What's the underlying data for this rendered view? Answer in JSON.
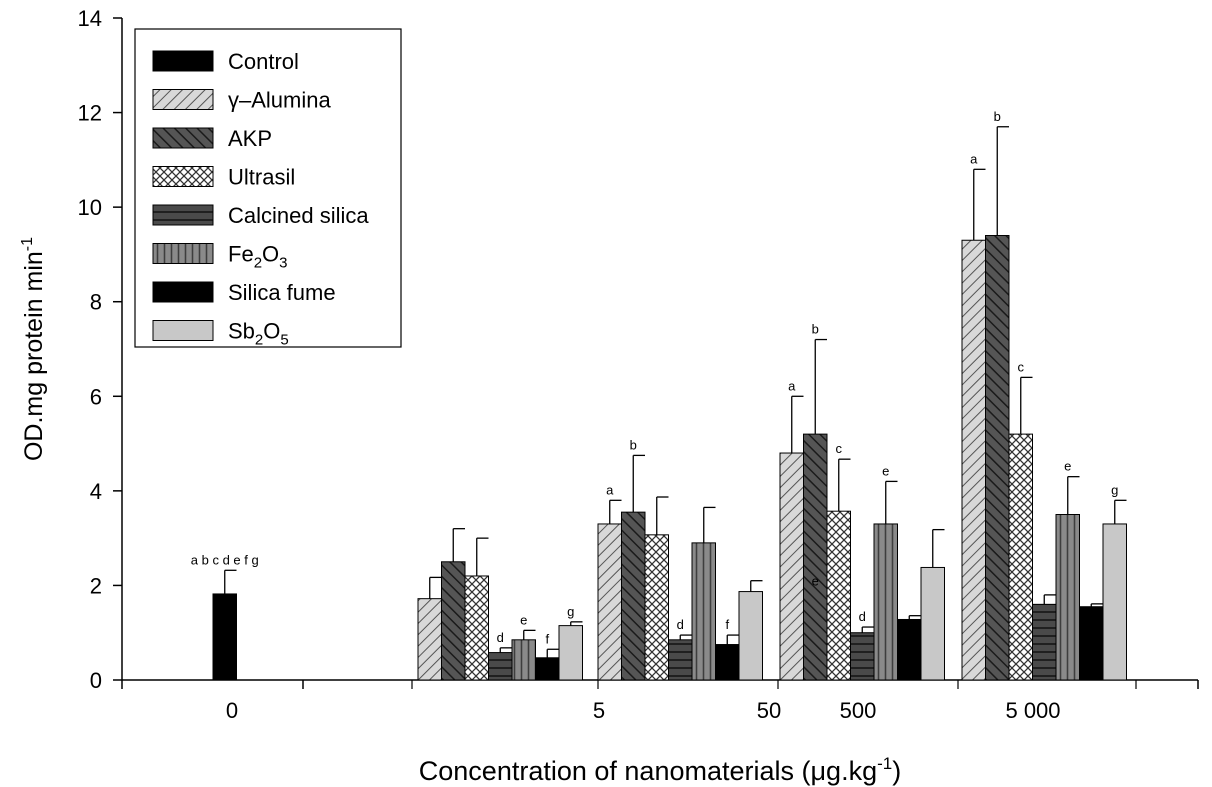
{
  "chart_data": {
    "type": "bar",
    "title": "",
    "xlabel": "Concentration of nanomaterials (μg.kg",
    "xlabel_sup": "-1",
    "xlabel_end": ")",
    "ylabel": "OD.mg protein min",
    "ylabel_sup": "-1",
    "ylim": [
      0,
      14
    ],
    "yticks": [
      "0",
      "2",
      "4",
      "6",
      "8",
      "10",
      "12",
      "14"
    ],
    "categories": [
      "0",
      "5",
      "50",
      "500",
      "5 000"
    ],
    "legend_position": "top-left",
    "series": [
      {
        "name": "Control",
        "pattern": "solid-black",
        "values": [
          1.82,
          null,
          null,
          null,
          null
        ],
        "errors": [
          0.5,
          null,
          null,
          null,
          null
        ],
        "letters": [
          "a b c d e f g",
          "",
          "",
          "",
          ""
        ]
      },
      {
        "name": "γ–Alumina",
        "pattern": "diag-light",
        "values": [
          null,
          1.72,
          3.3,
          4.8,
          9.3
        ],
        "errors": [
          null,
          0.45,
          0.5,
          1.2,
          1.5
        ],
        "letters": [
          "",
          "",
          "a",
          "a",
          "a"
        ]
      },
      {
        "name": "AKP",
        "pattern": "diag-dark",
        "values": [
          null,
          2.5,
          3.55,
          5.2,
          9.4
        ],
        "errors": [
          null,
          0.7,
          1.2,
          2.0,
          2.3
        ],
        "letters": [
          "",
          "",
          "b",
          "b",
          "b"
        ]
      },
      {
        "name": "Ultrasil",
        "pattern": "crosshatch",
        "values": [
          null,
          2.2,
          3.07,
          3.57,
          5.2
        ],
        "errors": [
          null,
          0.8,
          0.8,
          1.1,
          1.2
        ],
        "letters": [
          "",
          "",
          "",
          "c",
          "c"
        ]
      },
      {
        "name": "Calcined silica",
        "pattern": "horizontal-dark",
        "values": [
          null,
          0.58,
          0.85,
          1.0,
          1.6
        ],
        "errors": [
          null,
          0.1,
          0.1,
          0.12,
          0.2
        ],
        "letters": [
          "",
          "d",
          "d",
          "d",
          ""
        ]
      },
      {
        "name": "Fe",
        "name_sub1": "2",
        "name_mid": "O",
        "name_sub2": "3",
        "pattern": "vertical-grey",
        "values": [
          null,
          0.85,
          2.9,
          3.3,
          3.5
        ],
        "errors": [
          null,
          0.2,
          0.75,
          0.9,
          0.8
        ],
        "letters": [
          "",
          "e",
          "",
          "e",
          "e"
        ]
      },
      {
        "name": "Silica fume",
        "pattern": "solid-black",
        "values": [
          null,
          0.47,
          0.75,
          1.28,
          1.55
        ],
        "errors": [
          null,
          0.18,
          0.2,
          0.08,
          0.06
        ],
        "letters": [
          "",
          "f",
          "f",
          "",
          ""
        ]
      },
      {
        "name": "Sb",
        "name_sub1": "2",
        "name_mid": "O",
        "name_sub2": "5",
        "pattern": "solid-lightgrey",
        "values": [
          null,
          1.15,
          1.87,
          2.38,
          3.3
        ],
        "errors": [
          null,
          0.08,
          0.23,
          0.8,
          0.5
        ],
        "letters": [
          "",
          "g",
          "",
          "",
          "g"
        ]
      }
    ],
    "extra_annotations": [
      {
        "text": "e",
        "category": "500",
        "y": 2.0
      }
    ],
    "colors": {
      "axis": "#000000",
      "dark": "#3c3c3c",
      "mid": "#7a7a7a",
      "light": "#c8c8c8",
      "control": "#000000"
    }
  }
}
